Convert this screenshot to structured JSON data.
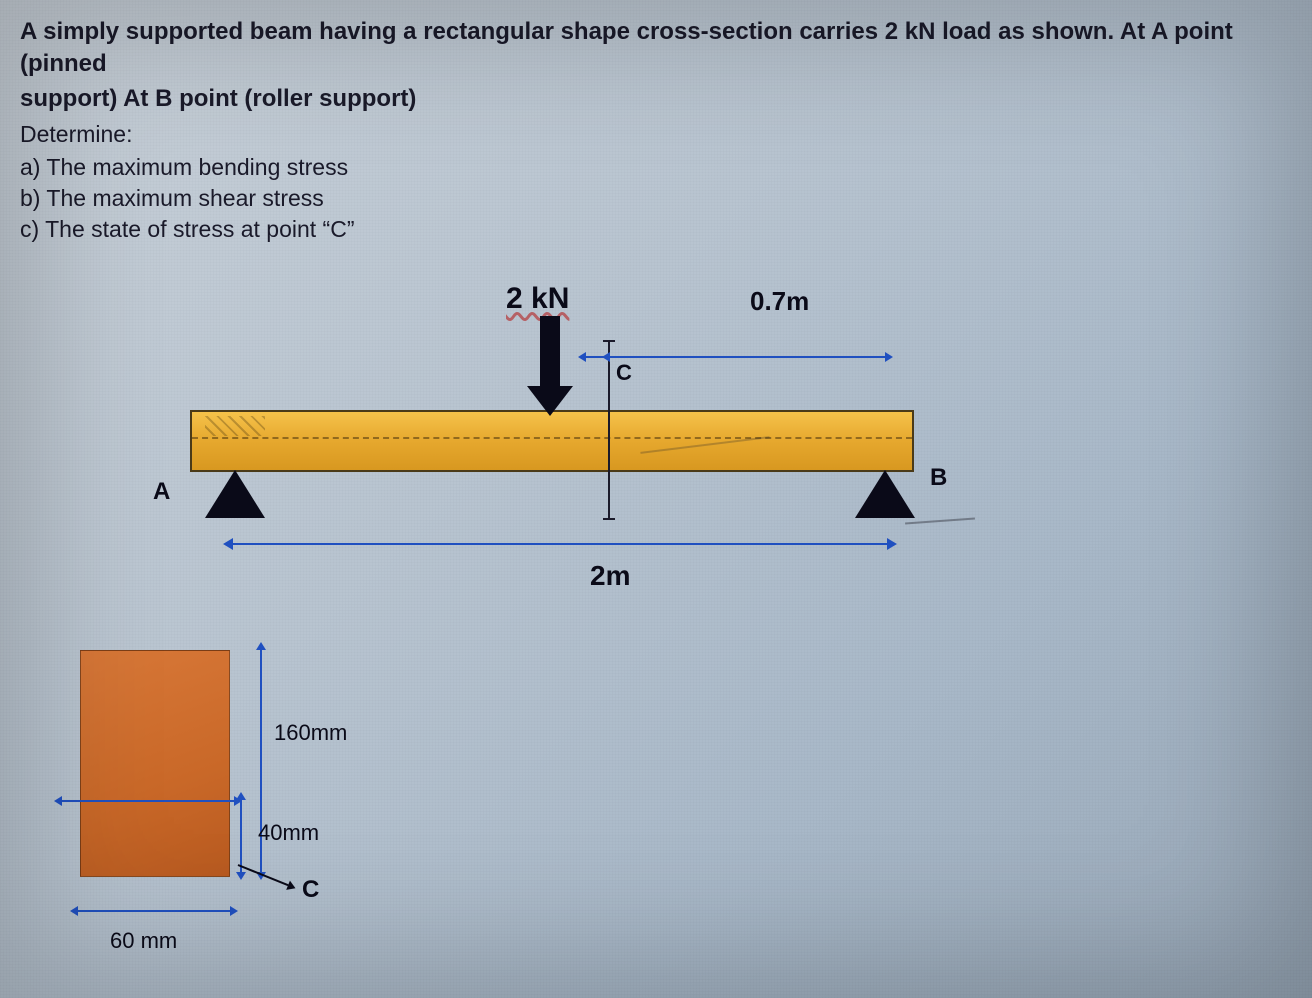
{
  "problem": {
    "title_line1": "A simply supported beam having a rectangular shape cross-section carries 2 kN load as shown.  At A point (pinned",
    "title_line2": "support) At B point (roller support)",
    "determine": "Determine:",
    "a": "a) The maximum bending stress",
    "b": "b) The maximum shear stress",
    "c": "c) The state of stress at point “C”"
  },
  "beam_diagram": {
    "load_label": "2 kN",
    "load_kN": 2,
    "span_label": "2m",
    "span_m": 2,
    "c_offset_label": "0.7m",
    "c_offset_m": 0.7,
    "c_point_label": "C",
    "support_A_label": "A",
    "support_B_label": "B",
    "beam_color": "#e6a82e",
    "support_color": "#0a0a18",
    "arrow_color": "#2050c0"
  },
  "cross_section": {
    "width_label": "60 mm",
    "width_mm": 60,
    "height_label": "160mm",
    "height_mm": 160,
    "c_from_bottom_label": "40mm",
    "c_from_bottom_mm": 40,
    "c_label": "C",
    "fill_color": "#c96828"
  }
}
